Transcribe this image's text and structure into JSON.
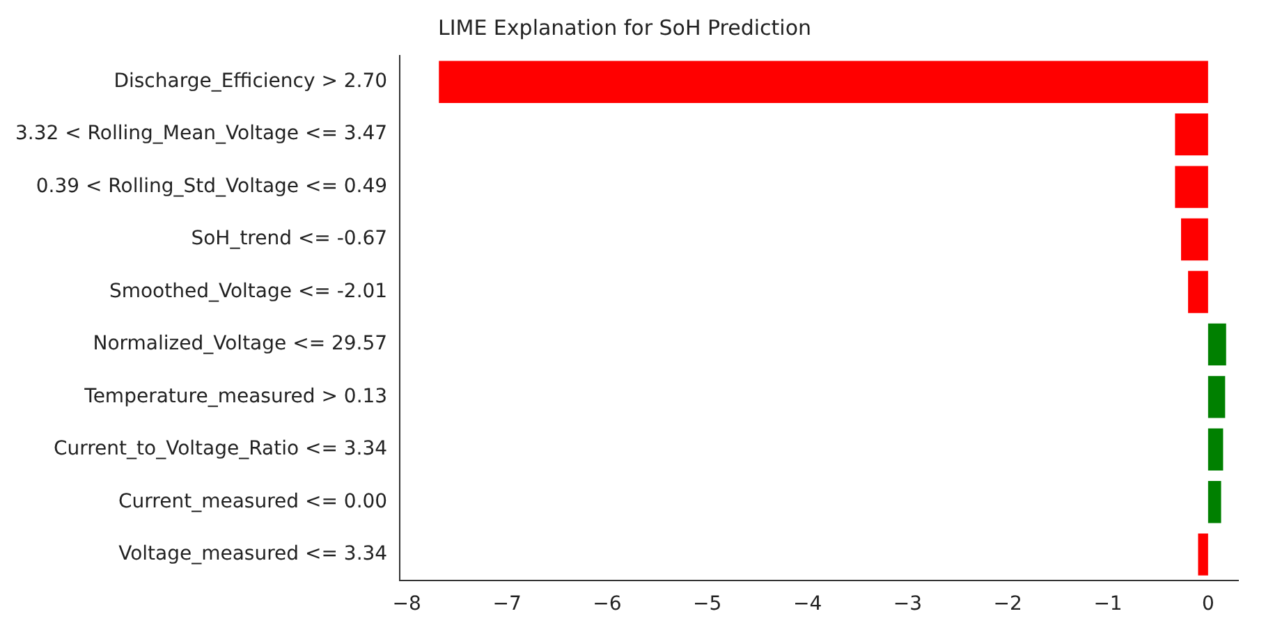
{
  "chart_data": {
    "type": "bar",
    "orientation": "horizontal",
    "title": "LIME Explanation for SoH Prediction",
    "categories": [
      "Discharge_Efficiency > 2.70",
      "3.32 < Rolling_Mean_Voltage <= 3.47",
      "0.39 < Rolling_Std_Voltage <= 0.49",
      "SoH_trend <= -0.67",
      "Smoothed_Voltage <= -2.01",
      "Normalized_Voltage <= 29.57",
      "Temperature_measured > 0.13",
      "Current_to_Voltage_Ratio <= 3.34",
      "Current_measured <= 0.00",
      "Voltage_measured <= 3.34"
    ],
    "values": [
      -7.68,
      -0.33,
      -0.33,
      -0.27,
      -0.2,
      0.18,
      0.17,
      0.15,
      0.13,
      -0.1
    ],
    "colors": [
      "#ff0000",
      "#ff0000",
      "#ff0000",
      "#ff0000",
      "#ff0000",
      "#008000",
      "#008000",
      "#008000",
      "#008000",
      "#ff0000"
    ],
    "xlim": [
      -8.07,
      0.3
    ],
    "xticks": [
      -8,
      -7,
      -6,
      -5,
      -4,
      -3,
      -2,
      -1,
      0
    ],
    "grid": false,
    "legend": false
  }
}
